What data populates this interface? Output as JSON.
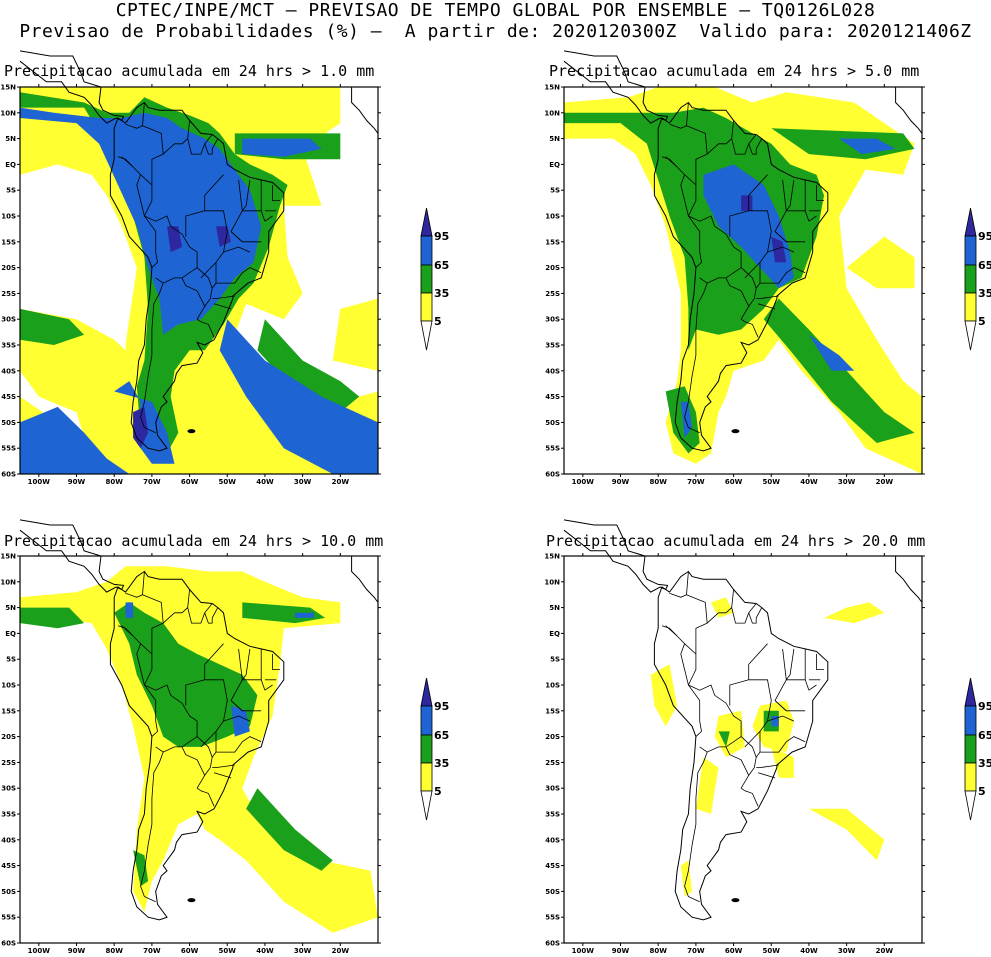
{
  "header": {
    "line1": "CPTEC/INPE/MCT – PREVISAO DE TEMPO GLOBAL POR ENSEMBLE – TQ0126L028",
    "line2": "Previsao de Probabilidades (%) –  A partir de: 2020120300Z  Valido para: 2020121406Z"
  },
  "panels": [
    {
      "title": "Precipitacao acumulada em 24 hrs > 1.0 mm",
      "threshold_mm": 1.0
    },
    {
      "title": "Precipitacao acumulada em 24 hrs > 5.0 mm",
      "threshold_mm": 5.0
    },
    {
      "title": "Precipitacao acumulada em 24 hrs > 10.0 mm",
      "threshold_mm": 10.0
    },
    {
      "title": "Precipitacao acumulada em 24 hrs > 20.0 mm",
      "threshold_mm": 20.0
    }
  ],
  "axes": {
    "lat_labels": [
      "15N",
      "10N",
      "5N",
      "EQ",
      "5S",
      "10S",
      "15S",
      "20S",
      "25S",
      "30S",
      "35S",
      "40S",
      "45S",
      "50S",
      "55S",
      "60S"
    ],
    "lon_labels": [
      "100W",
      "90W",
      "80W",
      "70W",
      "60W",
      "50W",
      "40W",
      "30W",
      "20W"
    ]
  },
  "legend": {
    "levels": [
      "95",
      "65",
      "35",
      "5"
    ],
    "colors": {
      "low": "#ffff32",
      "mid": "#1aa01a",
      "high": "#1e64d2",
      "max": "#2d28a0"
    }
  }
}
